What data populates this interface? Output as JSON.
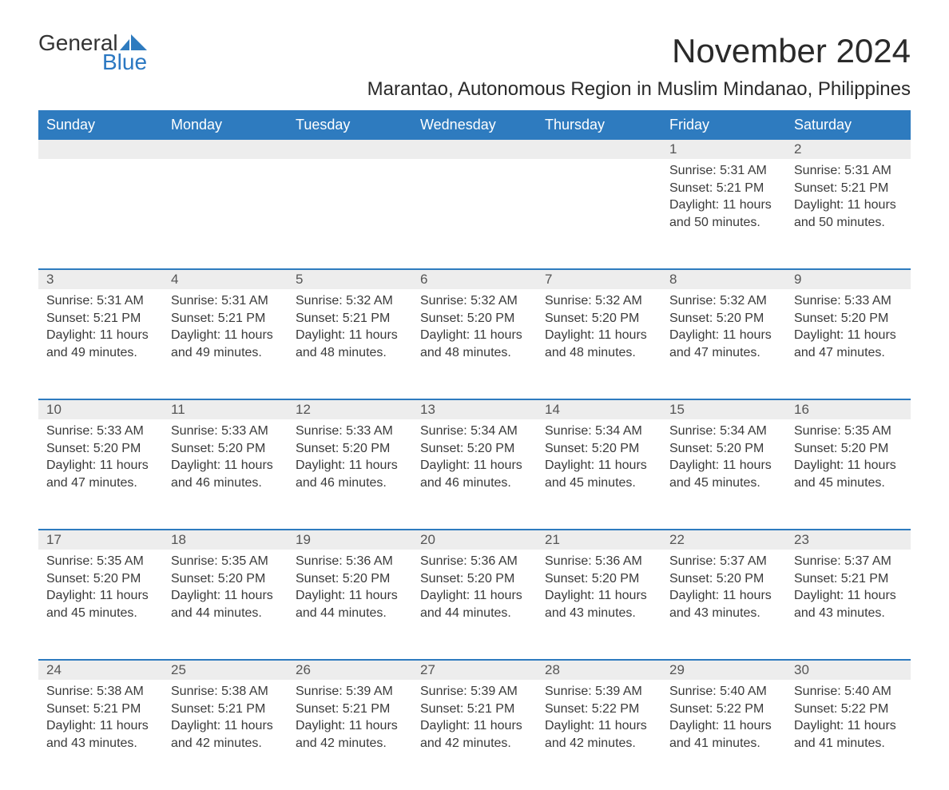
{
  "logo": {
    "line1": "General",
    "line2": "Blue",
    "mark_color": "#2e7bbf"
  },
  "title": "November 2024",
  "subtitle": "Marantao, Autonomous Region in Muslim Mindanao, Philippines",
  "colors": {
    "header_bg": "#2e7bbf",
    "header_text": "#ffffff",
    "daynum_bg": "#ededed",
    "row_border": "#2e7bbf",
    "body_text": "#3a3a3a",
    "title_text": "#2a2a2a",
    "logo_blue": "#2b78c2"
  },
  "typography": {
    "title_fontsize": 42,
    "subtitle_fontsize": 24,
    "header_fontsize": 18,
    "daynum_fontsize": 17,
    "cell_fontsize": 16,
    "logo_fontsize": 28
  },
  "layout": {
    "columns": 7,
    "rows": 5,
    "week_start": "Sunday"
  },
  "weekdays": [
    "Sunday",
    "Monday",
    "Tuesday",
    "Wednesday",
    "Thursday",
    "Friday",
    "Saturday"
  ],
  "weeks": [
    [
      null,
      null,
      null,
      null,
      null,
      {
        "daynum": "1",
        "sunrise": "Sunrise: 5:31 AM",
        "sunset": "Sunset: 5:21 PM",
        "daylight": "Daylight: 11 hours and 50 minutes."
      },
      {
        "daynum": "2",
        "sunrise": "Sunrise: 5:31 AM",
        "sunset": "Sunset: 5:21 PM",
        "daylight": "Daylight: 11 hours and 50 minutes."
      }
    ],
    [
      {
        "daynum": "3",
        "sunrise": "Sunrise: 5:31 AM",
        "sunset": "Sunset: 5:21 PM",
        "daylight": "Daylight: 11 hours and 49 minutes."
      },
      {
        "daynum": "4",
        "sunrise": "Sunrise: 5:31 AM",
        "sunset": "Sunset: 5:21 PM",
        "daylight": "Daylight: 11 hours and 49 minutes."
      },
      {
        "daynum": "5",
        "sunrise": "Sunrise: 5:32 AM",
        "sunset": "Sunset: 5:21 PM",
        "daylight": "Daylight: 11 hours and 48 minutes."
      },
      {
        "daynum": "6",
        "sunrise": "Sunrise: 5:32 AM",
        "sunset": "Sunset: 5:20 PM",
        "daylight": "Daylight: 11 hours and 48 minutes."
      },
      {
        "daynum": "7",
        "sunrise": "Sunrise: 5:32 AM",
        "sunset": "Sunset: 5:20 PM",
        "daylight": "Daylight: 11 hours and 48 minutes."
      },
      {
        "daynum": "8",
        "sunrise": "Sunrise: 5:32 AM",
        "sunset": "Sunset: 5:20 PM",
        "daylight": "Daylight: 11 hours and 47 minutes."
      },
      {
        "daynum": "9",
        "sunrise": "Sunrise: 5:33 AM",
        "sunset": "Sunset: 5:20 PM",
        "daylight": "Daylight: 11 hours and 47 minutes."
      }
    ],
    [
      {
        "daynum": "10",
        "sunrise": "Sunrise: 5:33 AM",
        "sunset": "Sunset: 5:20 PM",
        "daylight": "Daylight: 11 hours and 47 minutes."
      },
      {
        "daynum": "11",
        "sunrise": "Sunrise: 5:33 AM",
        "sunset": "Sunset: 5:20 PM",
        "daylight": "Daylight: 11 hours and 46 minutes."
      },
      {
        "daynum": "12",
        "sunrise": "Sunrise: 5:33 AM",
        "sunset": "Sunset: 5:20 PM",
        "daylight": "Daylight: 11 hours and 46 minutes."
      },
      {
        "daynum": "13",
        "sunrise": "Sunrise: 5:34 AM",
        "sunset": "Sunset: 5:20 PM",
        "daylight": "Daylight: 11 hours and 46 minutes."
      },
      {
        "daynum": "14",
        "sunrise": "Sunrise: 5:34 AM",
        "sunset": "Sunset: 5:20 PM",
        "daylight": "Daylight: 11 hours and 45 minutes."
      },
      {
        "daynum": "15",
        "sunrise": "Sunrise: 5:34 AM",
        "sunset": "Sunset: 5:20 PM",
        "daylight": "Daylight: 11 hours and 45 minutes."
      },
      {
        "daynum": "16",
        "sunrise": "Sunrise: 5:35 AM",
        "sunset": "Sunset: 5:20 PM",
        "daylight": "Daylight: 11 hours and 45 minutes."
      }
    ],
    [
      {
        "daynum": "17",
        "sunrise": "Sunrise: 5:35 AM",
        "sunset": "Sunset: 5:20 PM",
        "daylight": "Daylight: 11 hours and 45 minutes."
      },
      {
        "daynum": "18",
        "sunrise": "Sunrise: 5:35 AM",
        "sunset": "Sunset: 5:20 PM",
        "daylight": "Daylight: 11 hours and 44 minutes."
      },
      {
        "daynum": "19",
        "sunrise": "Sunrise: 5:36 AM",
        "sunset": "Sunset: 5:20 PM",
        "daylight": "Daylight: 11 hours and 44 minutes."
      },
      {
        "daynum": "20",
        "sunrise": "Sunrise: 5:36 AM",
        "sunset": "Sunset: 5:20 PM",
        "daylight": "Daylight: 11 hours and 44 minutes."
      },
      {
        "daynum": "21",
        "sunrise": "Sunrise: 5:36 AM",
        "sunset": "Sunset: 5:20 PM",
        "daylight": "Daylight: 11 hours and 43 minutes."
      },
      {
        "daynum": "22",
        "sunrise": "Sunrise: 5:37 AM",
        "sunset": "Sunset: 5:20 PM",
        "daylight": "Daylight: 11 hours and 43 minutes."
      },
      {
        "daynum": "23",
        "sunrise": "Sunrise: 5:37 AM",
        "sunset": "Sunset: 5:21 PM",
        "daylight": "Daylight: 11 hours and 43 minutes."
      }
    ],
    [
      {
        "daynum": "24",
        "sunrise": "Sunrise: 5:38 AM",
        "sunset": "Sunset: 5:21 PM",
        "daylight": "Daylight: 11 hours and 43 minutes."
      },
      {
        "daynum": "25",
        "sunrise": "Sunrise: 5:38 AM",
        "sunset": "Sunset: 5:21 PM",
        "daylight": "Daylight: 11 hours and 42 minutes."
      },
      {
        "daynum": "26",
        "sunrise": "Sunrise: 5:39 AM",
        "sunset": "Sunset: 5:21 PM",
        "daylight": "Daylight: 11 hours and 42 minutes."
      },
      {
        "daynum": "27",
        "sunrise": "Sunrise: 5:39 AM",
        "sunset": "Sunset: 5:21 PM",
        "daylight": "Daylight: 11 hours and 42 minutes."
      },
      {
        "daynum": "28",
        "sunrise": "Sunrise: 5:39 AM",
        "sunset": "Sunset: 5:22 PM",
        "daylight": "Daylight: 11 hours and 42 minutes."
      },
      {
        "daynum": "29",
        "sunrise": "Sunrise: 5:40 AM",
        "sunset": "Sunset: 5:22 PM",
        "daylight": "Daylight: 11 hours and 41 minutes."
      },
      {
        "daynum": "30",
        "sunrise": "Sunrise: 5:40 AM",
        "sunset": "Sunset: 5:22 PM",
        "daylight": "Daylight: 11 hours and 41 minutes."
      }
    ]
  ]
}
